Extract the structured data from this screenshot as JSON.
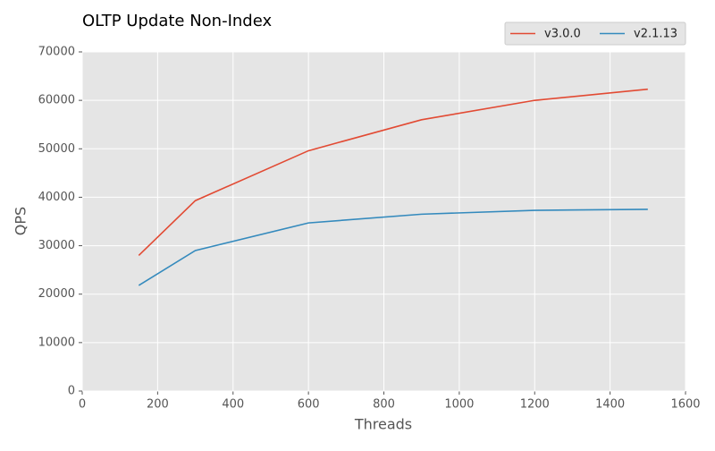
{
  "chart_data": {
    "type": "line",
    "title": "OLTP Update Non-Index",
    "xlabel": "Threads",
    "ylabel": "QPS",
    "x": [
      150,
      300,
      600,
      900,
      1200,
      1500
    ],
    "series": [
      {
        "name": "v3.0.0",
        "color": "#e24a33",
        "values": [
          28000,
          39300,
          49600,
          56000,
          60000,
          62300
        ]
      },
      {
        "name": "v2.1.13",
        "color": "#348abd",
        "values": [
          21800,
          29000,
          34700,
          36500,
          37300,
          37500
        ]
      }
    ],
    "xlim": [
      0,
      1600
    ],
    "xticks": [
      0,
      200,
      400,
      600,
      800,
      1000,
      1200,
      1400,
      1600
    ],
    "ylim": [
      0,
      70000
    ],
    "yticks": [
      0,
      10000,
      20000,
      30000,
      40000,
      50000,
      60000,
      70000
    ],
    "grid": true,
    "legend": "upper right"
  }
}
